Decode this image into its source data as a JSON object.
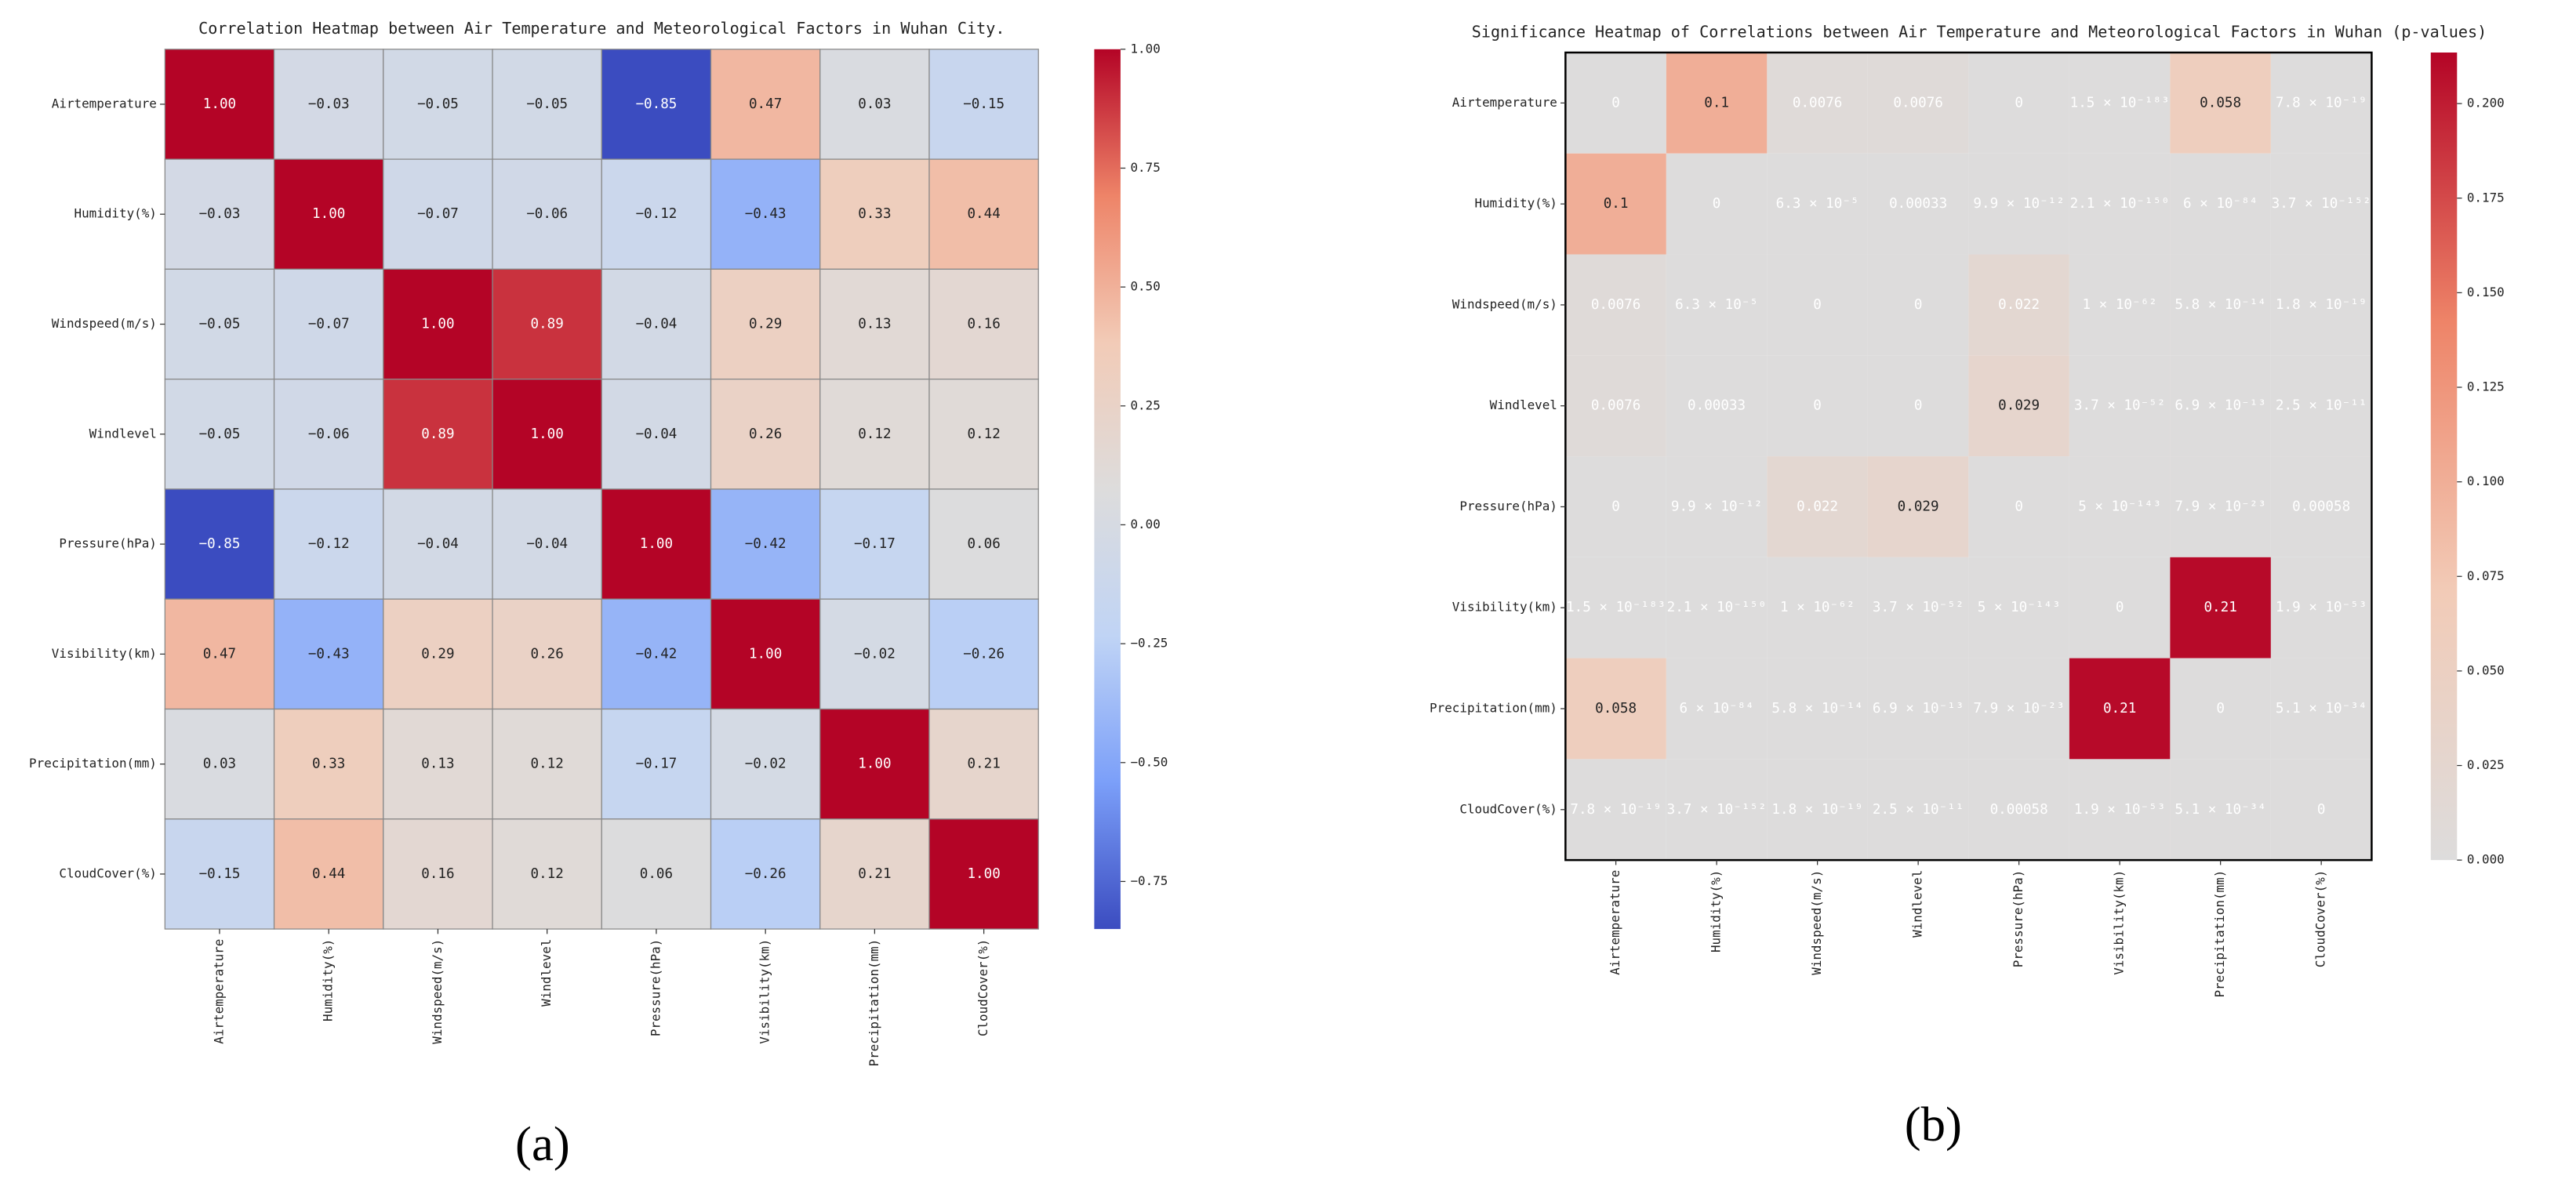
{
  "chart_data": [
    {
      "type": "heatmap",
      "title": "Correlation Heatmap between Air Temperature and Meteorological Factors in Wuhan City.",
      "panel_label": "(a)",
      "x_categories": [
        "Airtemperature",
        "Humidity(%)",
        "Windspeed(m/s)",
        "Windlevel",
        "Pressure(hPa)",
        "Visibility(km)",
        "Precipitation(mm)",
        "CloudCover(%)"
      ],
      "y_categories": [
        "Airtemperature",
        "Humidity(%)",
        "Windspeed(m/s)",
        "Windlevel",
        "Pressure(hPa)",
        "Visibility(km)",
        "Precipitation(mm)",
        "CloudCover(%)"
      ],
      "values": [
        [
          1.0,
          -0.03,
          -0.05,
          -0.05,
          -0.85,
          0.47,
          0.03,
          -0.15
        ],
        [
          -0.03,
          1.0,
          -0.07,
          -0.06,
          -0.12,
          -0.43,
          0.33,
          0.44
        ],
        [
          -0.05,
          -0.07,
          1.0,
          0.89,
          -0.04,
          0.29,
          0.13,
          0.16
        ],
        [
          -0.05,
          -0.06,
          0.89,
          1.0,
          -0.04,
          0.26,
          0.12,
          0.12
        ],
        [
          -0.85,
          -0.12,
          -0.04,
          -0.04,
          1.0,
          -0.42,
          -0.17,
          0.06
        ],
        [
          0.47,
          -0.43,
          0.29,
          0.26,
          -0.42,
          1.0,
          -0.02,
          -0.26
        ],
        [
          0.03,
          0.33,
          0.13,
          0.12,
          -0.17,
          -0.02,
          1.0,
          0.21
        ],
        [
          -0.15,
          0.44,
          0.16,
          0.12,
          0.06,
          -0.26,
          0.21,
          1.0
        ]
      ],
      "value_labels": [
        [
          "1.00",
          "−0.03",
          "−0.05",
          "−0.05",
          "−0.85",
          "0.47",
          "0.03",
          "−0.15"
        ],
        [
          "−0.03",
          "1.00",
          "−0.07",
          "−0.06",
          "−0.12",
          "−0.43",
          "0.33",
          "0.44"
        ],
        [
          "−0.05",
          "−0.07",
          "1.00",
          "0.89",
          "−0.04",
          "0.29",
          "0.13",
          "0.16"
        ],
        [
          "−0.05",
          "−0.06",
          "0.89",
          "1.00",
          "−0.04",
          "0.26",
          "0.12",
          "0.12"
        ],
        [
          "−0.85",
          "−0.12",
          "−0.04",
          "−0.04",
          "1.00",
          "−0.42",
          "−0.17",
          "0.06"
        ],
        [
          "0.47",
          "−0.43",
          "0.29",
          "0.26",
          "−0.42",
          "1.00",
          "−0.02",
          "−0.26"
        ],
        [
          "0.03",
          "0.33",
          "0.13",
          "0.12",
          "−0.17",
          "−0.02",
          "1.00",
          "0.21"
        ],
        [
          "−0.15",
          "0.44",
          "0.16",
          "0.12",
          "0.06",
          "−0.26",
          "0.21",
          "1.00"
        ]
      ],
      "zlim": [
        -0.85,
        1.0
      ],
      "colorscale": [
        "#3b4cc0",
        "#7b9ff9",
        "#c0d4f5",
        "#dddcdc",
        "#f2cbb7",
        "#ee8468",
        "#b40426"
      ],
      "colorbar_ticks": [
        {
          "value": 1.0,
          "label": "1.00"
        },
        {
          "value": 0.75,
          "label": "0.75"
        },
        {
          "value": 0.5,
          "label": "0.50"
        },
        {
          "value": 0.25,
          "label": "0.25"
        },
        {
          "value": 0,
          "label": "0.00"
        },
        {
          "value": -0.25,
          "label": "−0.25"
        },
        {
          "value": -0.5,
          "label": "−0.50"
        },
        {
          "value": -0.75,
          "label": "−0.75"
        }
      ],
      "cell_borders": true,
      "frame": false
    },
    {
      "type": "heatmap",
      "title": "Significance Heatmap of Correlations between Air Temperature and Meteorological Factors in Wuhan (p-values)",
      "panel_label": "(b)",
      "x_categories": [
        "Airtemperature",
        "Humidity(%)",
        "Windspeed(m/s)",
        "Windlevel",
        "Pressure(hPa)",
        "Visibility(km)",
        "Precipitation(mm)",
        "CloudCover(%)"
      ],
      "y_categories": [
        "Airtemperature",
        "Humidity(%)",
        "Windspeed(m/s)",
        "Windlevel",
        "Pressure(hPa)",
        "Visibility(km)",
        "Precipitation(mm)",
        "CloudCover(%)"
      ],
      "values": [
        [
          0,
          0.1,
          0.0076,
          0.0076,
          0,
          1.5e-183,
          0.058,
          7.8e-19
        ],
        [
          0.1,
          0,
          6.3e-05,
          0.00033,
          9.9e-12,
          2.1e-150,
          6e-84,
          3.7e-152
        ],
        [
          0.0076,
          6.3e-05,
          0,
          0,
          0.022,
          1e-62,
          5.8e-14,
          1.8e-19
        ],
        [
          0.0076,
          0.00033,
          0,
          0,
          0.029,
          3.7e-52,
          6.9e-13,
          2.5e-11
        ],
        [
          0,
          9.9e-12,
          0.022,
          0.029,
          0,
          5e-143,
          7.9e-23,
          0.00058
        ],
        [
          1.5e-183,
          2.1e-150,
          1e-62,
          3.7e-52,
          5e-143,
          0,
          0.21,
          1.9e-53
        ],
        [
          0.058,
          6e-84,
          5.8e-14,
          6.9e-13,
          7.9e-23,
          0.21,
          0,
          5.1e-34
        ],
        [
          7.8e-19,
          3.7e-152,
          1.8e-19,
          2.5e-11,
          0.00058,
          1.9e-53,
          5.1e-34,
          0
        ]
      ],
      "value_labels": [
        [
          "0",
          "0.1",
          "0.0076",
          "0.0076",
          "0",
          "1.5 × 10⁻¹⁸³",
          "0.058",
          "7.8 × 10⁻¹⁹"
        ],
        [
          "0.1",
          "0",
          "6.3 × 10⁻⁵",
          "0.00033",
          "9.9 × 10⁻¹²",
          "2.1 × 10⁻¹⁵⁰",
          "6 × 10⁻⁸⁴",
          "3.7 × 10⁻¹⁵²"
        ],
        [
          "0.0076",
          "6.3 × 10⁻⁵",
          "0",
          "0",
          "0.022",
          "1 × 10⁻⁶²",
          "5.8 × 10⁻¹⁴",
          "1.8 × 10⁻¹⁹"
        ],
        [
          "0.0076",
          "0.00033",
          "0",
          "0",
          "0.029",
          "3.7 × 10⁻⁵²",
          "6.9 × 10⁻¹³",
          "2.5 × 10⁻¹¹"
        ],
        [
          "0",
          "9.9 × 10⁻¹²",
          "0.022",
          "0.029",
          "0",
          "5 × 10⁻¹⁴³",
          "7.9 × 10⁻²³",
          "0.00058"
        ],
        [
          "1.5 × 10⁻¹⁸³",
          "2.1 × 10⁻¹⁵⁰",
          "1 × 10⁻⁶²",
          "3.7 × 10⁻⁵²",
          "5 × 10⁻¹⁴³",
          "0",
          "0.21",
          "1.9 × 10⁻⁵³"
        ],
        [
          "0.058",
          "6 × 10⁻⁸⁴",
          "5.8 × 10⁻¹⁴",
          "6.9 × 10⁻¹³",
          "7.9 × 10⁻²³",
          "0.21",
          "0",
          "5.1 × 10⁻³⁴"
        ],
        [
          "7.8 × 10⁻¹⁹",
          "3.7 × 10⁻¹⁵²",
          "1.8 × 10⁻¹⁹",
          "2.5 × 10⁻¹¹",
          "0.00058",
          "1.9 × 10⁻⁵³",
          "5.1 × 10⁻³⁴",
          "0"
        ]
      ],
      "zlim": [
        0,
        0.2135
      ],
      "colorscale": [
        "#dddcdc",
        "#f2cbb7",
        "#ee8468",
        "#b40426"
      ],
      "colorbar_ticks": [
        {
          "value": 0,
          "label": "0.000"
        },
        {
          "value": 0.025,
          "label": "0.025"
        },
        {
          "value": 0.05,
          "label": "0.050"
        },
        {
          "value": 0.075,
          "label": "0.075"
        },
        {
          "value": 0.1,
          "label": "0.100"
        },
        {
          "value": 0.125,
          "label": "0.125"
        },
        {
          "value": 0.15,
          "label": "0.150"
        },
        {
          "value": 0.175,
          "label": "0.175"
        },
        {
          "value": 0.2,
          "label": "0.200"
        }
      ],
      "cell_borders": false,
      "frame": true
    }
  ]
}
